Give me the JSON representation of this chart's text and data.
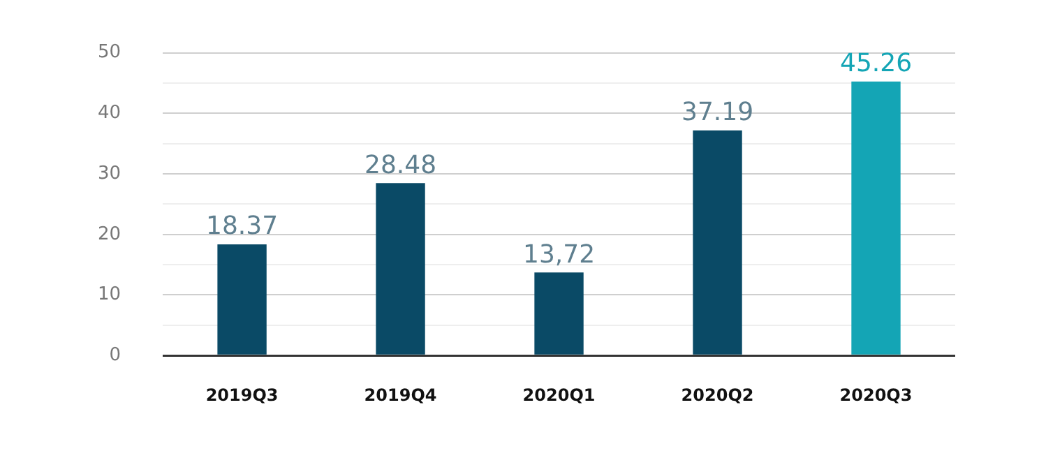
{
  "chart_data": {
    "type": "bar",
    "categories": [
      "2019Q3",
      "2019Q4",
      "2020Q1",
      "2020Q2",
      "2020Q3"
    ],
    "values": [
      18.37,
      28.48,
      13.72,
      37.19,
      45.26
    ],
    "colors": [
      "#0a4a66",
      "#0a4a66",
      "#0a4a66",
      "#0a4a66",
      "#14a5b5"
    ],
    "value_labels": [
      "18.37",
      "28.48",
      "13,72",
      "37.19",
      "45.26"
    ],
    "ylim": [
      0,
      50
    ],
    "yticks": [
      0,
      {
        "value": 5,
        "label": null
      },
      10,
      {
        "value": 15,
        "label": null
      },
      20,
      {
        "value": 25,
        "label": null
      },
      30,
      {
        "value": 35,
        "label": null
      },
      40,
      {
        "value": 45,
        "label": null
      },
      50
    ],
    "grid": "y",
    "legend": false
  }
}
